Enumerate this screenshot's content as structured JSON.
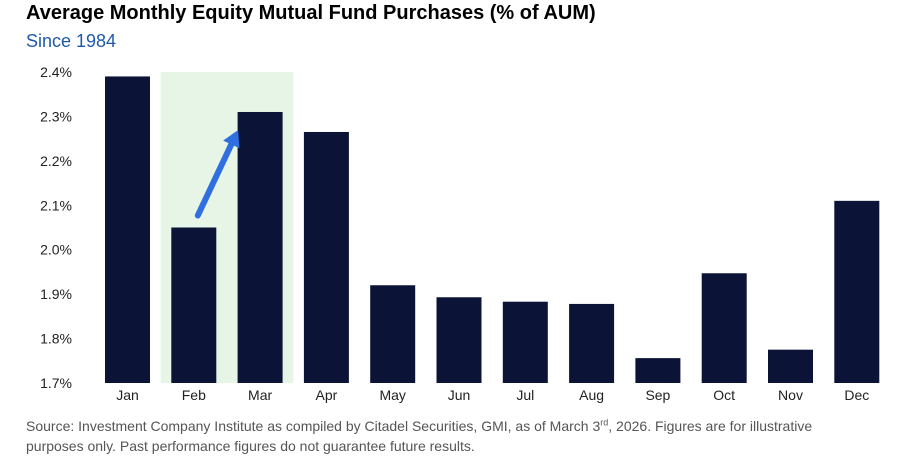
{
  "title": "Average Monthly Equity Mutual Fund Purchases (% of AUM)",
  "subtitle": "Since 1984",
  "source": {
    "line1_before": "Source: Investment Company Institute as compiled by Citadel Securities, GMI, as of March 3",
    "line1_sup": "rd",
    "line1_after": ", 2026. Figures are for illustrative",
    "line2": "purposes only. Past performance figures do not guarantee future results."
  },
  "chart_data": {
    "type": "bar",
    "categories": [
      "Jan",
      "Feb",
      "Mar",
      "Apr",
      "May",
      "Jun",
      "Jul",
      "Aug",
      "Sep",
      "Oct",
      "Nov",
      "Dec"
    ],
    "values": [
      2.39,
      2.05,
      2.31,
      2.265,
      1.92,
      1.893,
      1.883,
      1.878,
      1.756,
      1.947,
      1.775,
      2.11
    ],
    "yticks": [
      "2.4%",
      "2.3%",
      "2.2%",
      "2.1%",
      "2.0%",
      "1.9%",
      "1.8%",
      "1.7%"
    ],
    "ylim": [
      1.7,
      2.4
    ],
    "highlight_categories": [
      "Feb",
      "Mar"
    ],
    "annotation": "arrow from Feb to Mar",
    "grid": false,
    "colors": {
      "bar": "#0b1437",
      "highlight": "#e7f5e7",
      "arrow": "#2f6fe0",
      "axis_text": "#222222"
    }
  }
}
